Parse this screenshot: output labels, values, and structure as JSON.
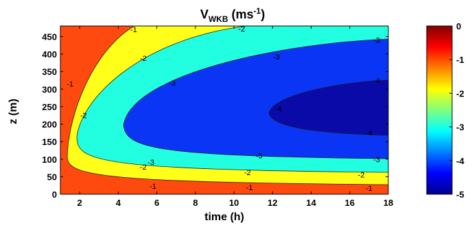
{
  "chart_data": {
    "type": "contour",
    "title_main": "V",
    "title_sub": "WKB",
    "title_unit_base": " (ms",
    "title_unit_exp": "-1",
    "title_unit_end": ")",
    "xlabel": "time (h)",
    "ylabel": "z (m)",
    "xlim": [
      1,
      18
    ],
    "ylim": [
      0,
      480
    ],
    "x_ticks": [
      "2",
      "4",
      "6",
      "8",
      "10",
      "12",
      "14",
      "16",
      "18"
    ],
    "y_ticks": [
      "0",
      "50",
      "100",
      "150",
      "200",
      "250",
      "300",
      "350",
      "400",
      "450"
    ],
    "colorbar_ticks": [
      "0",
      "-1",
      "-2",
      "-3",
      "-4",
      "-5"
    ],
    "colorbar_range": [
      -5,
      0
    ],
    "filled_levels": [
      {
        "range": "> -1",
        "color": "#ff4a0f"
      },
      {
        "range": "-2 to -1",
        "color": "#ffff1a"
      },
      {
        "range": "-3 to -2",
        "color": "#22ffe0"
      },
      {
        "range": "-4 to -3",
        "color": "#0a35f5"
      },
      {
        "range": "< -4",
        "color": "#0a0aa8"
      }
    ],
    "contour_labels": [
      {
        "text": "-1",
        "x": 4.8,
        "y": 470
      },
      {
        "text": "-1",
        "x": 1.5,
        "y": 315
      },
      {
        "text": "-1",
        "x": 5.8,
        "y": 23
      },
      {
        "text": "-1",
        "x": 10.8,
        "y": 20
      },
      {
        "text": "-1",
        "x": 17.0,
        "y": 18
      },
      {
        "text": "-2",
        "x": 10.4,
        "y": 472
      },
      {
        "text": "-2",
        "x": 5.3,
        "y": 388
      },
      {
        "text": "-2",
        "x": 2.2,
        "y": 225
      },
      {
        "text": "-2",
        "x": 5.3,
        "y": 78
      },
      {
        "text": "-2",
        "x": 10.7,
        "y": 62
      },
      {
        "text": "-2",
        "x": 16.6,
        "y": 56
      },
      {
        "text": "-3",
        "x": 17.4,
        "y": 440
      },
      {
        "text": "-3",
        "x": 12.2,
        "y": 392
      },
      {
        "text": "-3",
        "x": 6.8,
        "y": 318
      },
      {
        "text": "-3",
        "x": 5.7,
        "y": 92
      },
      {
        "text": "-3",
        "x": 11.3,
        "y": 110
      },
      {
        "text": "-3",
        "x": 17.4,
        "y": 100
      },
      {
        "text": "-4",
        "x": 17.4,
        "y": 325
      },
      {
        "text": "-4",
        "x": 12.3,
        "y": 245
      },
      {
        "text": "-4",
        "x": 17.0,
        "y": 175
      }
    ]
  }
}
